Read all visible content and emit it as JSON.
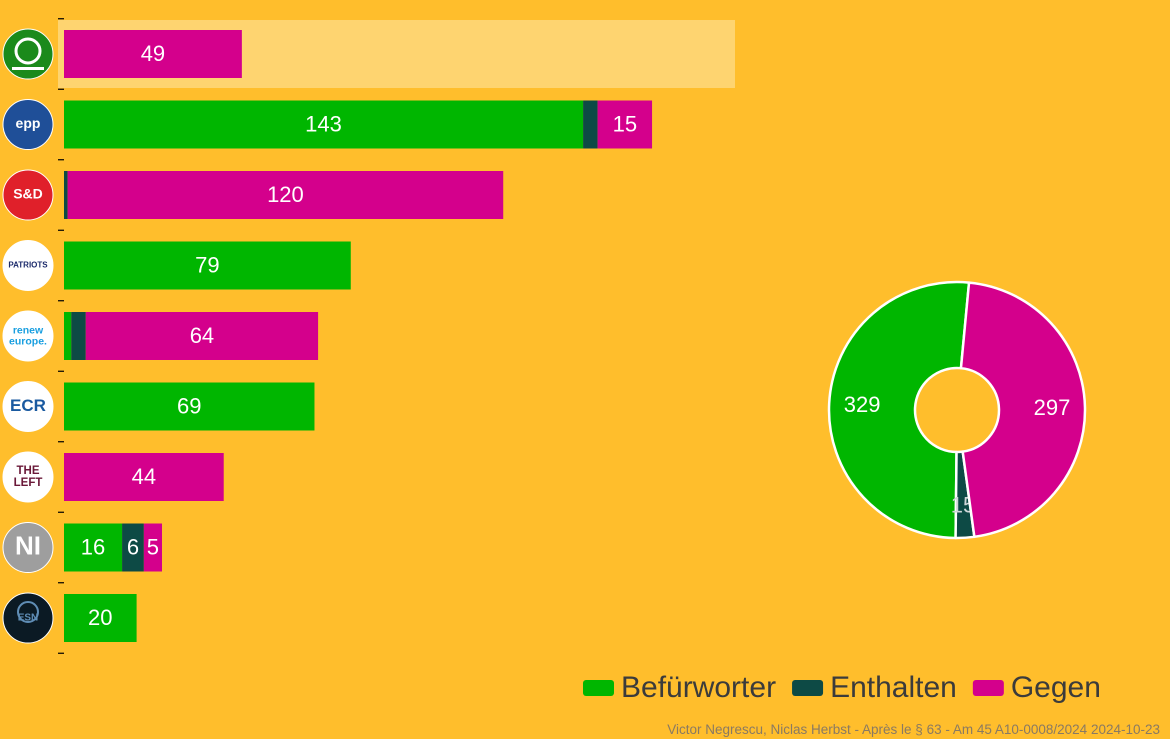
{
  "colors": {
    "background": "#ffbe2c",
    "highlight": "#fed470",
    "befurworter": "#00b600",
    "enthalten": "#0d4a45",
    "gegen": "#d4008c",
    "label_text": "#ffffff",
    "legend_text": "#3b3b3b",
    "credit_text": "#8a7a62"
  },
  "legend": [
    {
      "label": "Befürworter",
      "color": "#00b600"
    },
    {
      "label": "Enthalten",
      "color": "#0d4a45"
    },
    {
      "label": "Gegen",
      "color": "#d4008c"
    }
  ],
  "credit": "Victor Negrescu, Niclas Herbst - Après le § 63 - Am 45 A10-0008/2024 2024-10-23",
  "chart_data": [
    {
      "type": "bar",
      "orientation": "horizontal",
      "stacked": true,
      "highlighted_group": "Greens/EFA",
      "groups": [
        {
          "key": "Greens/EFA",
          "logo": {
            "icon": "greens-efa-logo",
            "bg": "#1b8a1b",
            "text": "",
            "text_color": "#ffffff"
          },
          "befurworter": 0,
          "enthalten": 0,
          "gegen": 49
        },
        {
          "key": "EPP",
          "logo": {
            "icon": "epp-logo",
            "bg": "#1f4f98",
            "text": "epp",
            "text_color": "#ffffff"
          },
          "befurworter": 143,
          "enthalten": 4,
          "gegen": 15
        },
        {
          "key": "S&D",
          "logo": {
            "icon": "sd-logo",
            "bg": "#e0202a",
            "text": "S&D",
            "text_color": "#ffffff"
          },
          "befurworter": 0,
          "enthalten": 1,
          "gegen": 120
        },
        {
          "key": "Patriots",
          "logo": {
            "icon": "patriots-logo",
            "bg": "#ffffff",
            "text": "PATRIOTS",
            "text_color": "#1b2a6b"
          },
          "befurworter": 79,
          "enthalten": 0,
          "gegen": 0
        },
        {
          "key": "Renew Europe",
          "logo": {
            "icon": "renew-europe-logo",
            "bg": "#ffffff",
            "text": "renew europe.",
            "text_color": "#1a9fe0"
          },
          "befurworter": 2,
          "enthalten": 4,
          "gegen": 64
        },
        {
          "key": "ECR",
          "logo": {
            "icon": "ecr-logo",
            "bg": "#ffffff",
            "text": "ECR",
            "text_color": "#1a5aa0"
          },
          "befurworter": 69,
          "enthalten": 0,
          "gegen": 0
        },
        {
          "key": "The Left",
          "logo": {
            "icon": "the-left-logo",
            "bg": "#ffffff",
            "text": "THE LEFT",
            "text_color": "#6a1838"
          },
          "befurworter": 0,
          "enthalten": 0,
          "gegen": 44
        },
        {
          "key": "NI",
          "logo": {
            "icon": "ni-logo",
            "bg": "#9e9e9e",
            "text": "NI",
            "text_color": "#ffffff"
          },
          "befurworter": 16,
          "enthalten": 6,
          "gegen": 5
        },
        {
          "key": "ESN",
          "logo": {
            "icon": "esn-logo",
            "bg": "#0b1a24",
            "text": "ESN",
            "text_color": "#5f8db5"
          },
          "befurworter": 20,
          "enthalten": 0,
          "gegen": 0
        }
      ],
      "scale_max": 162,
      "label_min_value": 5
    },
    {
      "type": "pie",
      "donut": true,
      "slices": [
        {
          "label": "Befürworter",
          "value": 329,
          "color": "#00b600"
        },
        {
          "label": "Enthalten",
          "value": 15,
          "color": "#0d4a45"
        },
        {
          "label": "Gegen",
          "value": 297,
          "color": "#d4008c"
        }
      ]
    }
  ]
}
